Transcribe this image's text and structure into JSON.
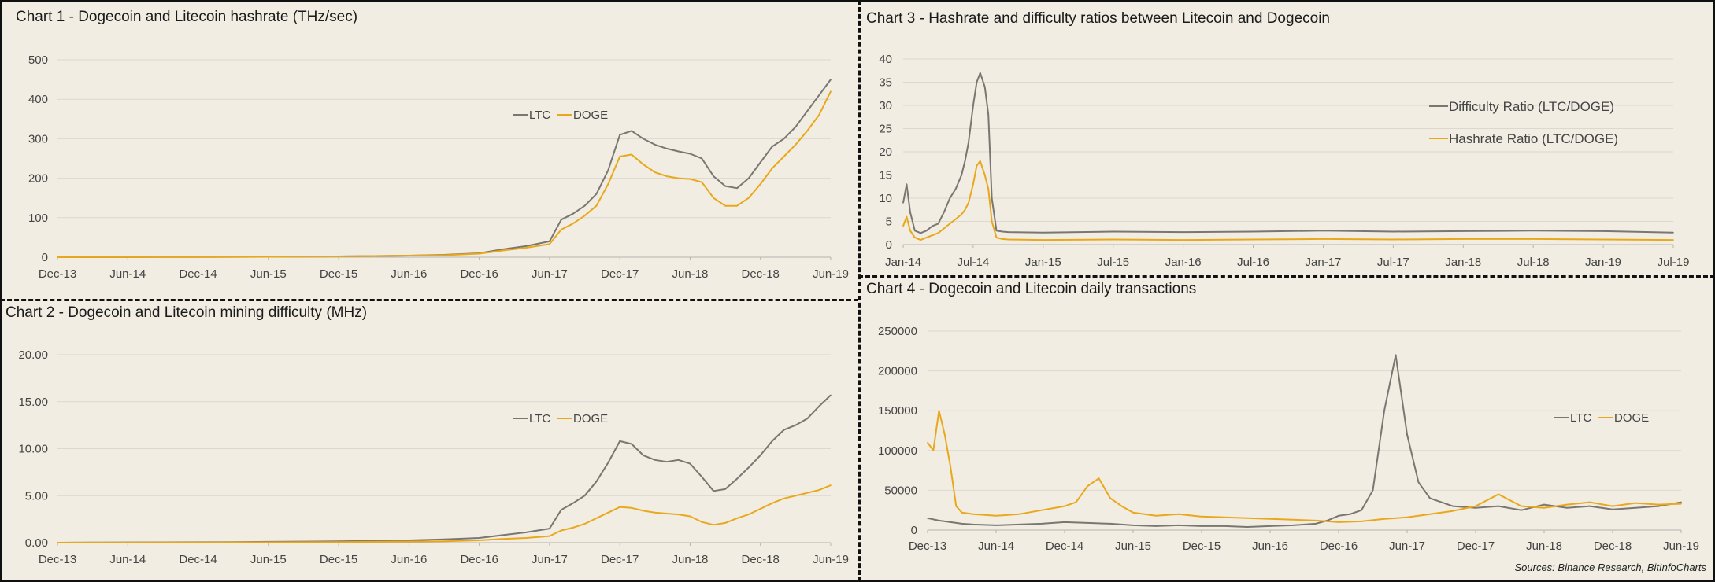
{
  "colors": {
    "ltc": "#7a7672",
    "doge": "#e9a81c",
    "grid": "#dcd8cf",
    "axis": "#b8b4ac"
  },
  "source": "Sources: Binance Research, BitInfoCharts",
  "chart_data": [
    {
      "id": "chart1",
      "type": "line",
      "title": "Chart 1 - Dogecoin and Litecoin hashrate (THz/sec)",
      "x_ticks": [
        "Dec-13",
        "Jun-14",
        "Dec-14",
        "Jun-15",
        "Dec-15",
        "Jun-16",
        "Dec-16",
        "Jun-17",
        "Dec-17",
        "Jun-18",
        "Dec-18",
        "Jun-19"
      ],
      "y_ticks": [
        "0",
        "100",
        "200",
        "300",
        "400",
        "500"
      ],
      "ylim": [
        0,
        500
      ],
      "legend": "top-center",
      "series": [
        {
          "name": "LTC",
          "x": [
            0,
            3,
            6,
            9,
            12,
            15,
            18,
            21,
            24,
            27,
            30,
            33,
            36,
            38,
            40,
            42,
            43,
            44,
            45,
            46,
            47,
            48,
            49,
            50,
            51,
            52,
            53,
            54,
            55,
            56,
            57,
            58,
            59,
            60,
            61,
            62,
            63,
            64,
            65,
            66
          ],
          "y": [
            0,
            0.1,
            0.2,
            0.3,
            0.5,
            0.8,
            1,
            1.5,
            2,
            3,
            4,
            6,
            10,
            20,
            28,
            40,
            95,
            110,
            130,
            160,
            220,
            310,
            320,
            300,
            285,
            275,
            268,
            262,
            250,
            205,
            180,
            175,
            200,
            240,
            280,
            300,
            330,
            370,
            410,
            450
          ]
        },
        {
          "name": "DOGE",
          "x": [
            0,
            3,
            6,
            9,
            12,
            15,
            18,
            21,
            24,
            27,
            30,
            33,
            36,
            38,
            40,
            42,
            43,
            44,
            45,
            46,
            47,
            48,
            49,
            50,
            51,
            52,
            53,
            54,
            55,
            56,
            57,
            58,
            59,
            60,
            61,
            62,
            63,
            64,
            65,
            66
          ],
          "y": [
            0,
            0.1,
            0.2,
            0.3,
            0.5,
            0.8,
            1,
            1.5,
            2,
            3,
            4,
            5,
            9,
            17,
            24,
            33,
            70,
            85,
            105,
            130,
            185,
            255,
            260,
            235,
            215,
            205,
            200,
            198,
            190,
            150,
            130,
            130,
            150,
            185,
            225,
            255,
            285,
            320,
            360,
            420
          ]
        }
      ]
    },
    {
      "id": "chart2",
      "type": "line",
      "title": "Chart 2 - Dogecoin and Litecoin mining difficulty (MHz)",
      "x_ticks": [
        "Dec-13",
        "Jun-14",
        "Dec-14",
        "Jun-15",
        "Dec-15",
        "Jun-16",
        "Dec-16",
        "Jun-17",
        "Dec-17",
        "Jun-18",
        "Dec-18",
        "Jun-19"
      ],
      "y_ticks": [
        "0.00",
        "5.00",
        "10.00",
        "15.00",
        "20.00"
      ],
      "ylim": [
        0,
        20
      ],
      "legend": "top-center",
      "series": [
        {
          "name": "LTC",
          "x": [
            0,
            3,
            6,
            9,
            12,
            15,
            18,
            21,
            24,
            27,
            30,
            33,
            36,
            38,
            40,
            42,
            43,
            44,
            45,
            46,
            47,
            48,
            49,
            50,
            51,
            52,
            53,
            54,
            55,
            56,
            57,
            58,
            59,
            60,
            61,
            62,
            63,
            64,
            65,
            66
          ],
          "y": [
            0,
            0.02,
            0.03,
            0.04,
            0.05,
            0.07,
            0.09,
            0.12,
            0.15,
            0.2,
            0.25,
            0.35,
            0.5,
            0.8,
            1.1,
            1.5,
            3.5,
            4.2,
            5.0,
            6.5,
            8.5,
            10.8,
            10.5,
            9.3,
            8.8,
            8.6,
            8.8,
            8.4,
            7.0,
            5.5,
            5.7,
            6.8,
            8.0,
            9.3,
            10.8,
            12.0,
            12.5,
            13.2,
            14.5,
            15.7
          ]
        },
        {
          "name": "DOGE",
          "x": [
            0,
            3,
            6,
            9,
            12,
            15,
            18,
            21,
            24,
            27,
            30,
            33,
            36,
            38,
            40,
            42,
            43,
            44,
            45,
            46,
            47,
            48,
            49,
            50,
            51,
            52,
            53,
            54,
            55,
            56,
            57,
            58,
            59,
            60,
            61,
            62,
            63,
            64,
            65,
            66
          ],
          "y": [
            0,
            0.01,
            0.01,
            0.02,
            0.02,
            0.03,
            0.04,
            0.05,
            0.07,
            0.09,
            0.12,
            0.15,
            0.25,
            0.4,
            0.5,
            0.7,
            1.3,
            1.6,
            2.0,
            2.6,
            3.2,
            3.8,
            3.7,
            3.4,
            3.2,
            3.1,
            3.0,
            2.8,
            2.2,
            1.9,
            2.1,
            2.6,
            3.0,
            3.6,
            4.2,
            4.7,
            5.0,
            5.3,
            5.6,
            6.1
          ]
        }
      ]
    },
    {
      "id": "chart3",
      "type": "line",
      "title": "Chart 3 - Hashrate and difficulty ratios between Litecoin and Dogecoin",
      "x_ticks": [
        "Jan-14",
        "Jul-14",
        "Jan-15",
        "Jul-15",
        "Jan-16",
        "Jul-16",
        "Jan-17",
        "Jul-17",
        "Jan-18",
        "Jul-18",
        "Jan-19",
        "Jul-19"
      ],
      "y_ticks": [
        "0",
        "5",
        "10",
        "15",
        "20",
        "25",
        "30",
        "35",
        "40"
      ],
      "ylim": [
        0,
        40
      ],
      "legend": "right",
      "series": [
        {
          "name": "Difficulty Ratio (LTC/DOGE)",
          "x": [
            0,
            0.3,
            0.6,
            1,
            1.5,
            2,
            2.5,
            3,
            3.5,
            4,
            4.5,
            5,
            5.3,
            5.6,
            6,
            6.3,
            6.6,
            7,
            7.3,
            7.6,
            8,
            8.5,
            9,
            12,
            18,
            24,
            30,
            36,
            42,
            48,
            54,
            60,
            66
          ],
          "y": [
            9,
            13,
            7,
            3,
            2.5,
            3,
            4,
            4.5,
            7,
            10,
            12,
            15,
            18,
            22,
            30,
            35,
            37,
            34,
            28,
            10,
            3,
            2.8,
            2.7,
            2.6,
            2.8,
            2.7,
            2.8,
            3.0,
            2.8,
            2.9,
            3.0,
            2.9,
            2.6
          ]
        },
        {
          "name": "Hashrate Ratio (LTC/DOGE)",
          "x": [
            0,
            0.3,
            0.6,
            1,
            1.5,
            2,
            2.5,
            3,
            3.5,
            4,
            4.5,
            5,
            5.3,
            5.6,
            6,
            6.3,
            6.6,
            7,
            7.3,
            7.6,
            8,
            8.5,
            9,
            12,
            18,
            24,
            30,
            36,
            42,
            48,
            54,
            60,
            66
          ],
          "y": [
            4,
            6,
            3,
            1.5,
            1,
            1.5,
            2,
            2.5,
            3.5,
            4.5,
            5.5,
            6.5,
            7.5,
            9,
            13,
            17,
            18,
            15,
            12,
            5,
            1.5,
            1.2,
            1.1,
            1.0,
            1.1,
            1.0,
            1.1,
            1.2,
            1.1,
            1.2,
            1.2,
            1.1,
            1.0
          ]
        }
      ]
    },
    {
      "id": "chart4",
      "type": "line",
      "title": "Chart 4 - Dogecoin and Litecoin daily transactions",
      "x_ticks": [
        "Dec-13",
        "Jun-14",
        "Dec-14",
        "Jun-15",
        "Dec-15",
        "Jun-16",
        "Dec-16",
        "Jun-17",
        "Dec-17",
        "Jun-18",
        "Dec-18",
        "Jun-19"
      ],
      "y_ticks": [
        "0",
        "50000",
        "100000",
        "150000",
        "200000",
        "250000"
      ],
      "ylim": [
        0,
        250000
      ],
      "legend": "right",
      "series": [
        {
          "name": "LTC",
          "x": [
            0,
            1,
            2,
            3,
            4,
            6,
            8,
            10,
            12,
            14,
            16,
            18,
            20,
            22,
            24,
            26,
            28,
            30,
            32,
            34,
            35,
            36,
            37,
            38,
            39,
            40,
            41,
            42,
            43,
            44,
            46,
            48,
            50,
            52,
            54,
            56,
            58,
            60,
            62,
            64,
            66
          ],
          "y": [
            15000,
            12000,
            10000,
            8000,
            7000,
            6000,
            7000,
            8000,
            10000,
            9000,
            8000,
            6000,
            5000,
            6000,
            5000,
            5000,
            4000,
            5000,
            6000,
            8000,
            12000,
            18000,
            20000,
            25000,
            50000,
            150000,
            220000,
            120000,
            60000,
            40000,
            30000,
            28000,
            30000,
            25000,
            32000,
            28000,
            30000,
            26000,
            28000,
            30000,
            35000
          ]
        },
        {
          "name": "DOGE",
          "x": [
            0,
            0.5,
            1,
            1.5,
            2,
            2.5,
            3,
            4,
            6,
            8,
            10,
            12,
            13,
            14,
            15,
            16,
            17,
            18,
            20,
            22,
            24,
            26,
            28,
            30,
            32,
            34,
            36,
            38,
            40,
            42,
            44,
            46,
            48,
            50,
            52,
            54,
            56,
            58,
            60,
            62,
            64,
            66
          ],
          "y": [
            110000,
            100000,
            150000,
            120000,
            80000,
            30000,
            22000,
            20000,
            18000,
            20000,
            25000,
            30000,
            35000,
            55000,
            65000,
            40000,
            30000,
            22000,
            18000,
            20000,
            17000,
            16000,
            15000,
            14000,
            13000,
            12000,
            10000,
            11000,
            14000,
            16000,
            20000,
            24000,
            30000,
            45000,
            30000,
            28000,
            32000,
            35000,
            30000,
            34000,
            32000,
            33000
          ]
        }
      ]
    }
  ]
}
